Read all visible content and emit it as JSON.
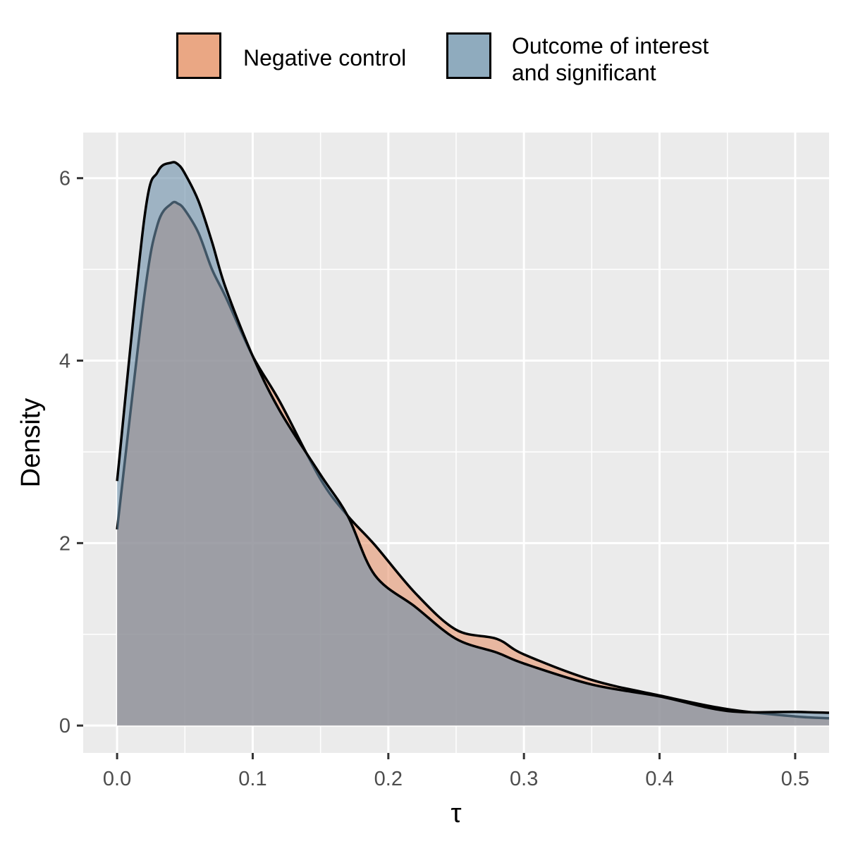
{
  "chart_data": {
    "type": "area",
    "xlabel": "τ",
    "ylabel": "Density",
    "xlim": [
      -0.025,
      0.525
    ],
    "ylim": [
      -0.3,
      6.5
    ],
    "x_ticks": [
      "0.0",
      "0.1",
      "0.2",
      "0.3",
      "0.4",
      "0.5"
    ],
    "y_ticks": [
      "0",
      "2",
      "4",
      "6"
    ],
    "grid": true,
    "legend_position": "top",
    "series": [
      {
        "name": "Negative control",
        "color": "#e6956e",
        "x": [
          0.0,
          0.02,
          0.03,
          0.04,
          0.045,
          0.05,
          0.06,
          0.07,
          0.08,
          0.1,
          0.12,
          0.15,
          0.17,
          0.19,
          0.22,
          0.25,
          0.28,
          0.3,
          0.35,
          0.4,
          0.45,
          0.5,
          0.525
        ],
        "values": [
          2.15,
          4.7,
          5.5,
          5.72,
          5.72,
          5.65,
          5.4,
          5.0,
          4.7,
          4.05,
          3.55,
          2.7,
          2.3,
          1.98,
          1.45,
          1.05,
          0.95,
          0.78,
          0.5,
          0.33,
          0.18,
          0.1,
          0.08
        ]
      },
      {
        "name": "Outcome of interest and significant",
        "color": "#6a8ea8",
        "x": [
          0.0,
          0.02,
          0.03,
          0.04,
          0.045,
          0.05,
          0.06,
          0.07,
          0.08,
          0.1,
          0.12,
          0.15,
          0.17,
          0.19,
          0.22,
          0.25,
          0.28,
          0.3,
          0.35,
          0.4,
          0.45,
          0.5,
          0.525
        ],
        "values": [
          2.68,
          5.55,
          6.07,
          6.17,
          6.15,
          6.05,
          5.75,
          5.3,
          4.8,
          4.05,
          3.45,
          2.75,
          2.3,
          1.65,
          1.3,
          0.95,
          0.8,
          0.68,
          0.45,
          0.32,
          0.16,
          0.15,
          0.14
        ]
      }
    ]
  }
}
